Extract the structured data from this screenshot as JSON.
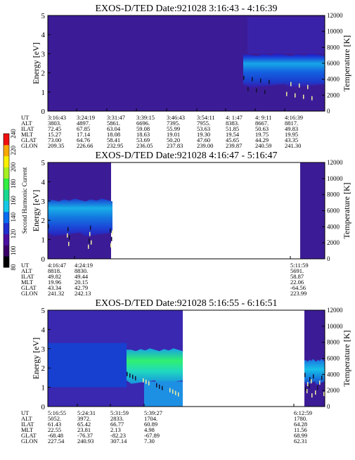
{
  "colorbar": {
    "label": "Second Harmonic Current",
    "ticks": [
      "80",
      "100",
      "120",
      "140",
      "160",
      "180",
      "200",
      "220",
      "240"
    ],
    "range": [
      80,
      240
    ],
    "colors": [
      "#000000",
      "#3a0066",
      "#4a0fa0",
      "#1f2fd0",
      "#0a6cf0",
      "#14c8e6",
      "#18d890",
      "#30f040",
      "#a8f020",
      "#f8f000",
      "#f8a800",
      "#f01010"
    ]
  },
  "ephemeris_labels": [
    "UT",
    "ALT",
    "ILAT",
    "MLT",
    "GLAT",
    "GLON"
  ],
  "chart_data": [
    {
      "type": "heatmap",
      "title": "EXOS-D/TED   Date:921028  3:16:43 - 4:16:39",
      "ylabel": "Energy [eV]",
      "ylabel_right": "Temperature [K]",
      "ylim": [
        0,
        5
      ],
      "ylim_right": [
        0,
        12000
      ],
      "yticks": [
        "0",
        "1",
        "2",
        "3",
        "4",
        "5"
      ],
      "yticks_right": [
        "0",
        "2000",
        "4000",
        "6000",
        "8000",
        "10000",
        "12000"
      ],
      "ephemeris": [
        [
          "3:16:43",
          "3803.",
          "72.45",
          "15.27",
          "73.00",
          "209.35"
        ],
        [
          "3:24:19",
          "4897.",
          "67.85",
          "17.14",
          "64.76",
          "226.66"
        ],
        [
          "3:31:47",
          "5861.",
          "63.04",
          "18.08",
          "58.41",
          "232.95"
        ],
        [
          "3:39:15",
          "6696.",
          "59.08",
          "18.63",
          "53.69",
          "236.05"
        ],
        [
          "3:46:43",
          "7395.",
          "55.99",
          "19.01",
          "50.20",
          "237.83"
        ],
        [
          "3:54:11",
          "7955.",
          "53.63",
          "19.30",
          "47.60",
          "239.00"
        ],
        [
          "4: 1:47",
          "8383.",
          "51.85",
          "19.54",
          "45.65",
          "239.87"
        ],
        [
          "4: 9:11",
          "8667.",
          "50.63",
          "19.75",
          "44.29",
          "240.59"
        ],
        [
          "4:16:39",
          "8817.",
          "49.83",
          "19.95",
          "43.35",
          "241.30"
        ]
      ]
    },
    {
      "type": "heatmap",
      "title": "EXOS-D/TED   Date:921028  4:16:47 - 5:16:47",
      "ylabel": "Energy [eV]",
      "ylabel_right": "Temperature [K]",
      "ylim": [
        0,
        5
      ],
      "ylim_right": [
        0,
        12000
      ],
      "yticks": [
        "0",
        "1",
        "2",
        "3",
        "4",
        "5"
      ],
      "yticks_right": [
        "0",
        "2000",
        "4000",
        "6000",
        "8000",
        "10000",
        "12000"
      ],
      "ephemeris": [
        [
          "4:16:47",
          "8818.",
          "49.82",
          "19.96",
          "43.34",
          "241.32"
        ],
        [
          "4:24:19",
          "8830.",
          "49.44",
          "20.15",
          "42.79",
          "242.13"
        ],
        [
          "5:11:59",
          "5691.",
          "58.87",
          "22.06",
          "-64.56",
          "223.99"
        ]
      ]
    },
    {
      "type": "heatmap",
      "title": "EXOS-D/TED   Date:921028  5:16:55 - 6:16:51",
      "ylabel": "Energy [eV]",
      "ylabel_right": "Temperature [K]",
      "ylim": [
        0,
        5
      ],
      "ylim_right": [
        0,
        12000
      ],
      "yticks": [
        "0",
        "1",
        "2",
        "3",
        "4",
        "5"
      ],
      "yticks_right": [
        "0",
        "2000",
        "4000",
        "6000",
        "8000",
        "10000",
        "12000"
      ],
      "ephemeris": [
        [
          "5:16:55",
          "5052.",
          "61.43",
          "22.55",
          "-68.48",
          "227.54"
        ],
        [
          "5:24:31",
          "3972.",
          "65.42",
          "23.81",
          "-76.37",
          "240.93"
        ],
        [
          "5:31:59",
          "2833.",
          "66.77",
          "2.13",
          "-82.23",
          "307.14"
        ],
        [
          "5:39:27",
          "1704.",
          "60.89",
          "4.98",
          "-67.89",
          "7.30"
        ],
        [
          "6:12:59",
          "1780.",
          "64.28",
          "11.56",
          "68.99",
          "62.31"
        ]
      ]
    }
  ]
}
